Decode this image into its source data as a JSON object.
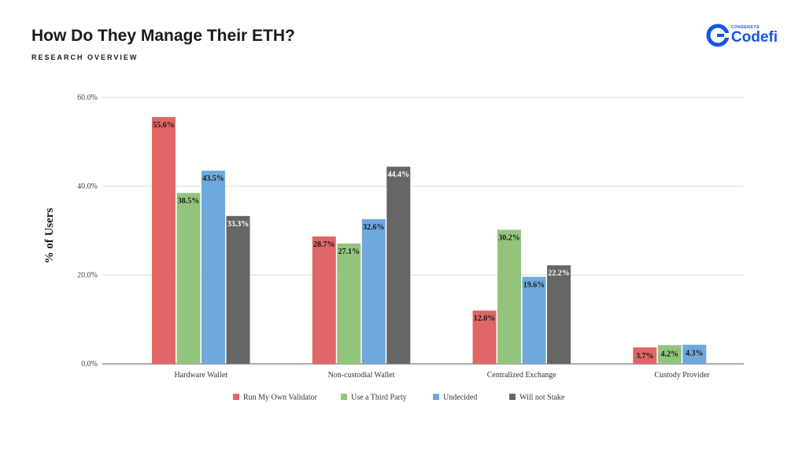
{
  "header": {
    "title": "How Do They Manage Their ETH?",
    "subtitle": "RESEARCH OVERVIEW"
  },
  "brand": {
    "small_label": "CONSENSYS",
    "name": "Codefi",
    "color": "#1652f0"
  },
  "chart_data": {
    "type": "bar",
    "categories": [
      "Hardware Wallet",
      "Non-custodial Wallet",
      "Centralized Exchange",
      "Custody Provider"
    ],
    "series": [
      {
        "name": "Run My Own Validator",
        "color": "#e06666",
        "values": [
          55.6,
          28.7,
          12.0,
          3.7
        ]
      },
      {
        "name": "Use a Third Party",
        "color": "#93c47d",
        "values": [
          38.5,
          27.1,
          30.2,
          4.2
        ]
      },
      {
        "name": "Undecided",
        "color": "#6fa8dc",
        "values": [
          43.5,
          32.6,
          19.6,
          4.3
        ]
      },
      {
        "name": "Will not Stake",
        "color": "#666666",
        "values": [
          33.3,
          44.4,
          22.2,
          null
        ]
      }
    ],
    "data_labels": [
      [
        "55.6%",
        "28.7%",
        "12.0%",
        "3.7%"
      ],
      [
        "38.5%",
        "27.1%",
        "30.2%",
        "4.2%"
      ],
      [
        "43.5%",
        "32.6%",
        "19.6%",
        "4.3%"
      ],
      [
        "33.3%",
        "44.4%",
        "22.2%",
        null
      ]
    ],
    "ylabel": "% of Users",
    "xlabel": "",
    "ylim": [
      0,
      60
    ],
    "yticks": [
      0,
      20,
      40,
      60
    ],
    "ytick_labels": [
      "0.0%",
      "20.0%",
      "40.0%",
      "60.0%"
    ],
    "grid": true,
    "legend_position": "bottom"
  }
}
